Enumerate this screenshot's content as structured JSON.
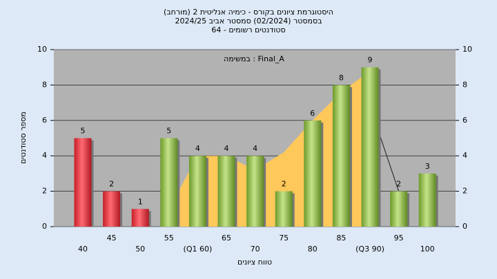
{
  "chart_data": {
    "type": "bar",
    "title": "(היסטוגרמת ציונים בקורס - כימיה אנליטית 2 (מורחב",
    "subtitle": "בסמסטר  (02/2024)  סמסטר אביב 2024/25",
    "subtitle2": "סטודנטים רשומים - 64",
    "annotation": "במשימה : Final_A",
    "y_label": "מספר סטודנטים",
    "x_label": "טווח ציונים",
    "categories": [
      "40",
      "45",
      "50",
      "55",
      "(Q1 60)",
      "65",
      "70",
      "75",
      "80",
      "85",
      "(Q3 90)",
      "95",
      "100"
    ],
    "values": [
      5,
      2,
      1,
      5,
      4,
      4,
      4,
      2,
      6,
      8,
      9,
      2,
      3
    ],
    "colors": [
      "red",
      "red",
      "red",
      "green",
      "green",
      "green",
      "green",
      "green",
      "green",
      "green",
      "green",
      "green",
      "green"
    ],
    "area": {
      "color": "#ffc85a",
      "values": [
        null,
        null,
        null,
        1,
        4,
        4,
        3.2,
        4.2,
        6,
        7.6,
        8.8,
        null,
        null
      ]
    },
    "line": {
      "color": "#333333",
      "values": [
        null,
        null,
        null,
        null,
        null,
        null,
        null,
        null,
        null,
        null,
        6.8,
        2,
        null
      ]
    },
    "ylim": [
      0,
      10
    ],
    "yticks": [
      0,
      2,
      4,
      6,
      8,
      10
    ],
    "y2lim": [
      0,
      10
    ],
    "y2ticks": [
      0,
      2,
      4,
      6,
      8,
      10
    ],
    "grid": true
  }
}
